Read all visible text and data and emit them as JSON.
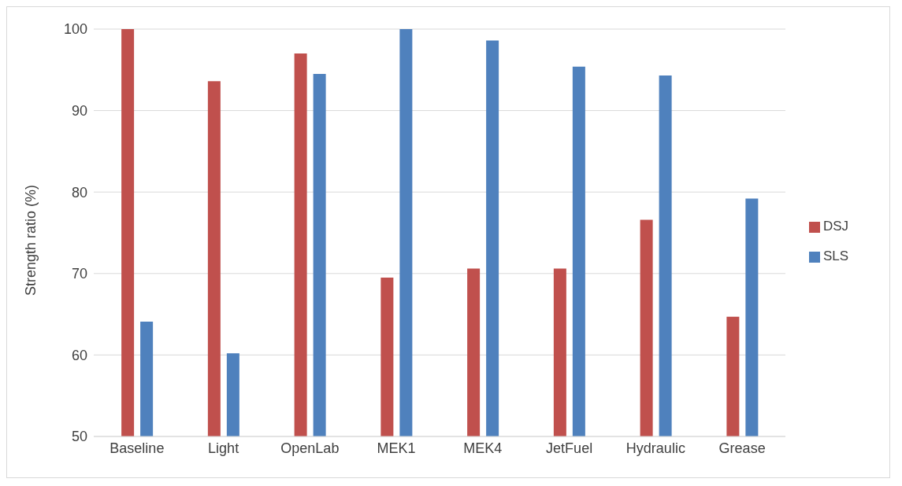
{
  "chart_data": {
    "type": "bar",
    "ylabel": "Strength ratio (%)",
    "categories": [
      "Baseline",
      "Light",
      "OpenLab",
      "MEK1",
      "MEK4",
      "JetFuel",
      "Hydraulic",
      "Grease"
    ],
    "series": [
      {
        "name": "DSJ",
        "color": "#c0504d",
        "values": [
          100,
          93.6,
          97.0,
          69.5,
          70.6,
          70.6,
          76.6,
          64.7
        ]
      },
      {
        "name": "SLS",
        "color": "#4f81bd",
        "values": [
          64.1,
          60.2,
          94.5,
          100,
          98.6,
          95.4,
          94.3,
          79.2
        ]
      }
    ],
    "ylim": [
      50,
      100
    ],
    "yticks": [
      50,
      60,
      70,
      80,
      90,
      100
    ],
    "grid": "y",
    "legend": "right"
  }
}
